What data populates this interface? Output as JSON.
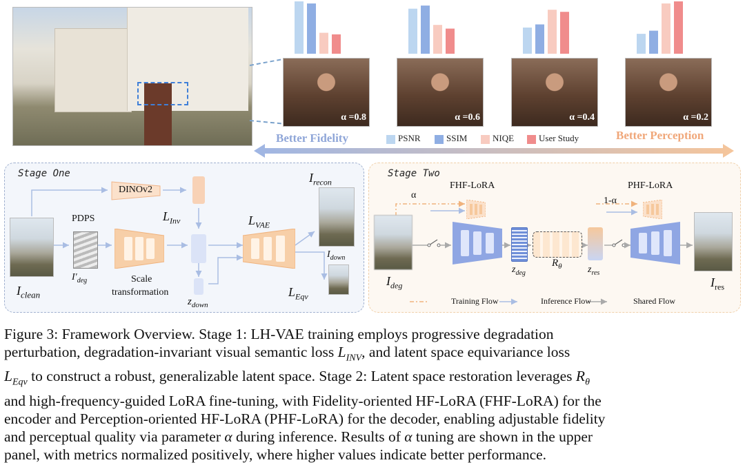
{
  "top_panel": {
    "alpha_labels": [
      "α =0.8",
      "α =0.6",
      "α =0.4",
      "α =0.2"
    ],
    "better_fidelity": "Better Fidelity",
    "better_perception": "Better Perception",
    "legend": [
      {
        "label": "PSNR",
        "color": "#bcd6f0"
      },
      {
        "label": "SSIM",
        "color": "#8faee3"
      },
      {
        "label": "NIQE",
        "color": "#f8cbc0"
      },
      {
        "label": "User Study",
        "color": "#f08c8c"
      }
    ],
    "bar_groups": [
      {
        "alpha": "0.8",
        "values": [
          1.0,
          0.96,
          0.4,
          0.37
        ]
      },
      {
        "alpha": "0.6",
        "values": [
          0.86,
          0.92,
          0.55,
          0.48
        ]
      },
      {
        "alpha": "0.4",
        "values": [
          0.5,
          0.56,
          0.84,
          0.8
        ]
      },
      {
        "alpha": "0.2",
        "values": [
          0.38,
          0.44,
          0.96,
          1.0
        ]
      }
    ]
  },
  "stage_one": {
    "title": "Stage One",
    "dinov2": "DINOv2",
    "pdps": "PDPS",
    "scale_line1": "Scale",
    "scale_line2": "transformation",
    "l_inv": "L",
    "l_inv_sub": "Inv",
    "l_vae": "L",
    "l_vae_sub": "VAE",
    "l_eqv": "L",
    "l_eqv_sub": "Eqv",
    "i_recon": "I",
    "i_recon_sub": "recon",
    "i_down": "I",
    "i_down_sub": "down",
    "i_clean": "I",
    "i_clean_sub": "clean",
    "i_deg_prime": "I′",
    "i_deg_prime_sub": "deg",
    "z_down": "z",
    "z_down_sub": "down"
  },
  "stage_two": {
    "title": "Stage Two",
    "fhf": "FHF-LoRA",
    "phf": "PHF-LoRA",
    "alpha": "α",
    "one_minus_alpha": "1-α",
    "i_deg": "I",
    "i_deg_sub": "deg",
    "z_deg": "z",
    "z_deg_sub": "deg",
    "r_theta": "R",
    "r_theta_sub": "θ",
    "z_res": "z",
    "z_res_sub": "res",
    "i_res": "I",
    "i_res_sub": "res",
    "legend_training": "Training Flow",
    "legend_inference": "Inference Flow",
    "legend_shared": "Shared Flow"
  },
  "caption": {
    "l1": "Figure 3: Framework Overview.  Stage 1: LH-VAE training employs progressive degradation",
    "l2a": "perturbation, degradation-invariant visual semantic loss ",
    "l2b": ", and latent space equivariance loss",
    "l3a": " to construct a robust, generalizable latent space. Stage 2: Latent space restoration leverages ",
    "l4": "and high-frequency-guided LoRA fine-tuning, with Fidelity-oriented HF-LoRA (FHF-LoRA) for the",
    "l5": "encoder and Perception-oriented HF-LoRA (PHF-LoRA) for the decoder, enabling adjustable fidelity",
    "l6a": "and perceptual quality via parameter ",
    "l6b": " during inference. Results of ",
    "l6c": " tuning are shown in the upper",
    "l7": "panel, with metrics normalized positively, where higher values indicate better performance.",
    "sym_linv": "L",
    "sym_linv_sub": "INV",
    "sym_leqv": "L",
    "sym_leqv_sub": "Eqv",
    "sym_r": "R",
    "sym_r_sub": "θ",
    "sym_alpha": "α"
  },
  "colors": {
    "orange": "#f6c89c",
    "blue": "#8fa6e3",
    "stage_one_bg": "#f3f6fb",
    "stage_two_bg": "#fdf8f2"
  }
}
